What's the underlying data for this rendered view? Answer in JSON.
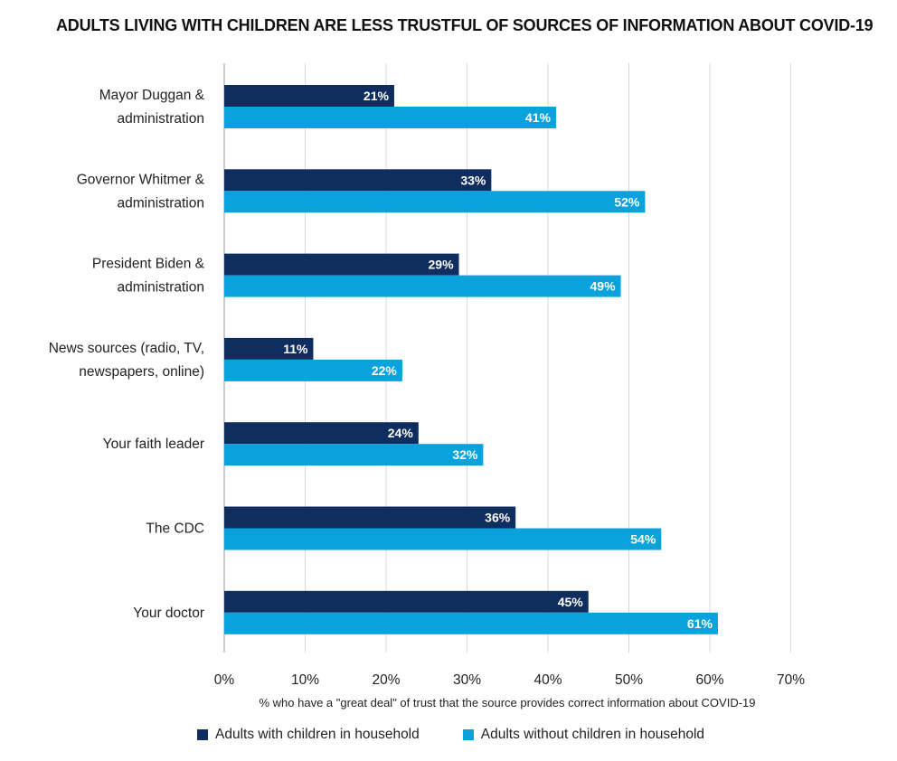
{
  "chart_data": {
    "type": "bar",
    "orientation": "horizontal",
    "title": "ADULTS LIVING WITH CHILDREN ARE LESS TRUSTFUL OF SOURCES OF INFORMATION ABOUT COVID-19",
    "categories": [
      [
        "Mayor Duggan &",
        "administration"
      ],
      [
        "Governor Whitmer &",
        "administration"
      ],
      [
        "President Biden &",
        "administration"
      ],
      [
        "News sources (radio, TV,",
        "newspapers, online)"
      ],
      [
        "Your faith leader"
      ],
      [
        "The CDC"
      ],
      [
        "Your doctor"
      ]
    ],
    "series": [
      {
        "name": "Adults with children in household",
        "color": "#0f2d5e",
        "values": [
          21,
          33,
          29,
          11,
          24,
          36,
          45
        ],
        "labels": [
          "21%",
          "33%",
          "29%",
          "11%",
          "24%",
          "36%",
          "45%"
        ]
      },
      {
        "name": "Adults without children in household",
        "color": "#0aa2dc",
        "values": [
          41,
          52,
          49,
          22,
          32,
          54,
          61
        ],
        "labels": [
          "41%",
          "52%",
          "49%",
          "22%",
          "32%",
          "54%",
          "61%"
        ]
      }
    ],
    "xlabel": "% who have a \"great deal\" of trust that the source provides correct information about COVID-19",
    "xlim": [
      0,
      70
    ],
    "xticks": [
      0,
      10,
      20,
      30,
      40,
      50,
      60,
      70
    ],
    "xtick_labels": [
      "0%",
      "10%",
      "20%",
      "30%",
      "40%",
      "50%",
      "60%",
      "70%"
    ],
    "grid": true,
    "legend_position": "bottom"
  }
}
